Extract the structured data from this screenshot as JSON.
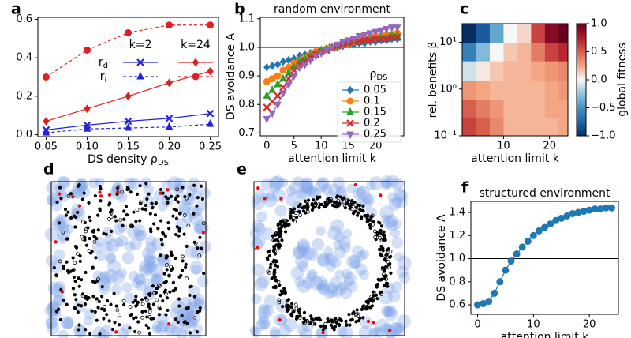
{
  "chart_data": [
    {
      "type": "line",
      "panel_label": "a",
      "xlabel": {
        "text": "DS density ρ",
        "sub": "DS"
      },
      "x": [
        0.05,
        0.1,
        0.15,
        0.2,
        0.25
      ],
      "xlim": [
        0.04,
        0.26
      ],
      "ylim": [
        -0.01,
        0.61
      ],
      "xticks": [
        0.05,
        {
          "value": 0.1,
          "label": "0.10"
        },
        0.15,
        {
          "value": 0.2,
          "label": "0.20"
        },
        0.25
      ],
      "yticks": [
        {
          "value": 0,
          "label": "0.0"
        },
        0.2,
        0.4,
        0.6
      ],
      "legend": {
        "columns": [
          "k=2",
          "k=24"
        ],
        "rows": [
          {
            "text": "r",
            "sub": "d"
          },
          {
            "text": "r",
            "sub": "i"
          }
        ]
      },
      "series": [
        {
          "color": "#2323d9",
          "marker": "x",
          "linestyle": "solid",
          "values": [
            0.025,
            0.05,
            0.07,
            0.085,
            0.11
          ]
        },
        {
          "color": "#2323d9",
          "marker": "triangle",
          "linestyle": "dashed",
          "values": [
            0.01,
            0.03,
            0.035,
            0.04,
            0.055
          ]
        },
        {
          "color": "#e02020",
          "marker": "diamond",
          "linestyle": "solid",
          "values": [
            0.07,
            0.135,
            0.2,
            0.27,
            0.33
          ]
        },
        {
          "color": "#e02020",
          "marker": "circle",
          "linestyle": "dashed",
          "values": [
            0.3,
            0.44,
            0.53,
            0.57,
            0.57
          ]
        }
      ]
    },
    {
      "type": "line",
      "panel_label": "b",
      "title": "random environment",
      "xlabel": "attention limit k",
      "ylabel": "DS avoidance A",
      "x": [
        0,
        1,
        2,
        3,
        4,
        5,
        6,
        7,
        8,
        9,
        10,
        11,
        12,
        13,
        14,
        15,
        16,
        17,
        18,
        19,
        20,
        21,
        22,
        23,
        24
      ],
      "xlim": [
        -1.2,
        25.2
      ],
      "ylim": [
        0.69,
        1.105
      ],
      "xticks": [
        0,
        5,
        10,
        15,
        20
      ],
      "yticks": [
        0.7,
        0.8,
        0.9,
        {
          "value": 1,
          "label": "1.0"
        },
        1.1
      ],
      "hline": 1,
      "legend_title": {
        "text": "ρ",
        "sub": "DS"
      },
      "series": [
        {
          "name": "0.05",
          "color": "#1f77b4",
          "marker": "diamond",
          "values": [
            0.93,
            0.935,
            0.94,
            0.95,
            0.955,
            0.96,
            0.97,
            0.975,
            0.98,
            0.985,
            0.99,
            0.995,
            1.0,
            1.0,
            1.005,
            1.01,
            1.01,
            1.015,
            1.015,
            1.02,
            1.02,
            1.025,
            1.025,
            1.03,
            1.03
          ]
        },
        {
          "name": "0.1",
          "color": "#ff7f0e",
          "marker": "circle",
          "values": [
            0.88,
            0.89,
            0.9,
            0.92,
            0.93,
            0.945,
            0.955,
            0.965,
            0.975,
            0.985,
            0.99,
            0.995,
            1.0,
            1.005,
            1.01,
            1.015,
            1.02,
            1.025,
            1.03,
            1.035,
            1.04,
            1.04,
            1.045,
            1.045,
            1.05
          ]
        },
        {
          "name": "0.15",
          "color": "#2ca02c",
          "marker": "triangle",
          "values": [
            0.83,
            0.85,
            0.87,
            0.89,
            0.91,
            0.93,
            0.95,
            0.96,
            0.97,
            0.98,
            0.99,
            0.995,
            1.0,
            1.005,
            1.01,
            1.015,
            1.02,
            1.02,
            1.025,
            1.03,
            1.03,
            1.035,
            1.035,
            1.04,
            1.04
          ]
        },
        {
          "name": "0.2",
          "color": "#d62728",
          "marker": "x",
          "values": [
            0.79,
            0.81,
            0.83,
            0.86,
            0.89,
            0.92,
            0.94,
            0.95,
            0.965,
            0.975,
            0.985,
            0.99,
            1.0,
            1.005,
            1.01,
            1.015,
            1.02,
            1.02,
            1.025,
            1.025,
            1.03,
            1.03,
            1.03,
            1.035,
            1.035
          ]
        },
        {
          "name": "0.25",
          "color": "#9467bd",
          "marker": "triangle_down",
          "values": [
            0.75,
            0.77,
            0.8,
            0.84,
            0.87,
            0.9,
            0.93,
            0.94,
            0.955,
            0.97,
            0.98,
            0.99,
            1.0,
            1.01,
            1.02,
            1.025,
            1.03,
            1.04,
            1.045,
            1.05,
            1.055,
            1.06,
            1.065,
            1.07,
            1.07
          ]
        }
      ]
    },
    {
      "type": "heatmap",
      "panel_label": "c",
      "xlabel": "attention limit k",
      "ylabel": "rel. benefits β",
      "colorbar_label": "global fitness",
      "colormap": "RdBu_r",
      "log_y": true,
      "xlim": [
        1,
        24
      ],
      "ylim": [
        0.1,
        25
      ],
      "xticks": [
        10,
        20
      ],
      "yticks": [
        {
          "value": 0.1,
          "label": "10⁻¹"
        },
        {
          "value": 1,
          "label": "10⁰"
        },
        {
          "value": 10,
          "label": "10¹"
        }
      ],
      "clim": [
        -1,
        1
      ],
      "cticks": [
        {
          "value": -1,
          "label": "−1.0"
        },
        {
          "value": -0.5,
          "label": "−0.5"
        },
        {
          "value": 0,
          "label": "0.0"
        },
        0.5,
        {
          "value": 1,
          "label": "1.0"
        }
      ],
      "x_edges": [
        1,
        4,
        7,
        10,
        13,
        16,
        19,
        22,
        24
      ],
      "y_edges": [
        0.1,
        0.25,
        0.6,
        1.5,
        4,
        10,
        25
      ],
      "z": [
        [
          0.6,
          0.5,
          0.35,
          0.2,
          0.2,
          0.2,
          0.2,
          0.25
        ],
        [
          0.5,
          0.4,
          0.3,
          0.2,
          0.2,
          0.2,
          0.25,
          0.25
        ],
        [
          0.3,
          0.25,
          0.2,
          0.2,
          0.2,
          0.2,
          0.25,
          0.3
        ],
        [
          -0.1,
          0.05,
          0.15,
          0.2,
          0.2,
          0.25,
          0.3,
          0.35
        ],
        [
          -0.6,
          -0.3,
          0,
          0.15,
          0.2,
          0.4,
          0.6,
          0.7
        ],
        [
          -1,
          -0.8,
          -0.4,
          0,
          0.1,
          0.6,
          0.9,
          1
        ]
      ]
    },
    {
      "type": "line",
      "panel_label": "f",
      "title": "structured environment",
      "xlabel": "attention limit k",
      "ylabel": "DS avoidance A",
      "x": [
        0,
        1,
        2,
        3,
        4,
        5,
        6,
        7,
        8,
        9,
        10,
        11,
        12,
        13,
        14,
        15,
        16,
        17,
        18,
        19,
        20,
        21,
        22,
        23,
        24
      ],
      "xlim": [
        -1.2,
        25.2
      ],
      "ylim": [
        0.518,
        1.496
      ],
      "xticks": [
        0,
        10,
        20
      ],
      "yticks": [
        0.6,
        0.8,
        {
          "value": 1,
          "label": "1.0"
        },
        1.2,
        1.4
      ],
      "hline": 1,
      "series": [
        {
          "color": "#1f77b4",
          "marker": "circle",
          "values": [
            0.6,
            0.61,
            0.63,
            0.7,
            0.8,
            0.9,
            0.98,
            1.04,
            1.1,
            1.15,
            1.2,
            1.24,
            1.27,
            1.3,
            1.33,
            1.35,
            1.37,
            1.39,
            1.4,
            1.41,
            1.42,
            1.43,
            1.43,
            1.44,
            1.44
          ]
        }
      ]
    }
  ],
  "illustrations": [
    {
      "panel_label": "d"
    },
    {
      "panel_label": "e"
    }
  ]
}
